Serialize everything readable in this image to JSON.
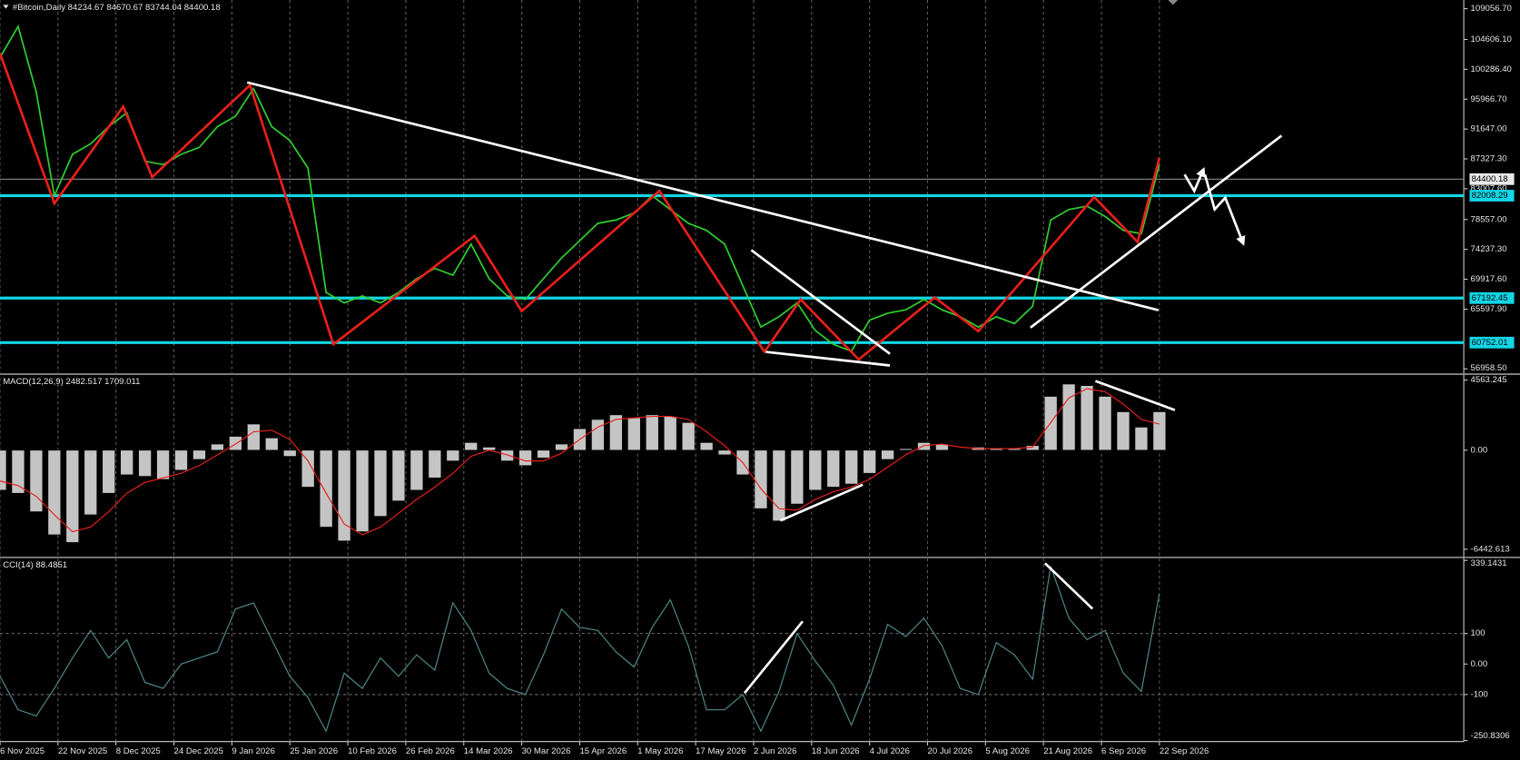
{
  "chart_data": [
    {
      "type": "line",
      "title": "#Bitcoin,Daily  84234.67 84670.67 83744.04 84400.18",
      "x": [
        "6 Nov 2025",
        "11 Nov 2025",
        "16 Nov 2025",
        "21 Nov 2025",
        "26 Nov 2025",
        "1 Dec 2025",
        "6 Dec 2025",
        "11 Dec 2025",
        "16 Dec 2025",
        "21 Dec 2025",
        "26 Dec 2025",
        "31 Dec 2025",
        "5 Jan 2026",
        "10 Jan 2026",
        "15 Jan 2026",
        "20 Jan 2026",
        "25 Jan 2026",
        "30 Jan 2026",
        "4 Feb 2026",
        "9 Feb 2026",
        "14 Feb 2026",
        "19 Feb 2026",
        "24 Feb 2026",
        "1 Mar 2026",
        "6 Mar 2026",
        "11 Mar 2026",
        "16 Mar 2026",
        "21 Mar 2026",
        "26 Mar 2026",
        "31 Mar 2026",
        "5 Apr 2026",
        "10 Apr 2026",
        "15 Apr 2026",
        "20 Apr 2026",
        "25 Apr 2026",
        "30 Apr 2026",
        "5 May 2026",
        "10 May 2026",
        "15 May 2026",
        "20 May 2026",
        "25 May 2026",
        "30 May 2026",
        "4 Jun 2026",
        "9 Jun 2026",
        "14 Jun 2026",
        "19 Jun 2026",
        "24 Jun 2026",
        "29 Jun 2026",
        "4 Jul 2026",
        "9 Jul 2026",
        "14 Jul 2026",
        "19 Jul 2026",
        "24 Jul 2026",
        "29 Jul 2026",
        "3 Aug 2026",
        "8 Aug 2026",
        "13 Aug 2026",
        "18 Aug 2026",
        "23 Aug 2026",
        "28 Aug 2026",
        "2 Sep 2026",
        "7 Sep 2026",
        "12 Sep 2026",
        "17 Sep 2026",
        "22 Sep 2026"
      ],
      "xlim": [
        "6 Nov 2025",
        "15 Dec 2026"
      ],
      "series": [
        {
          "color": "#2fcf2f",
          "values": [
            102000,
            106500,
            97000,
            82000,
            88000,
            89500,
            92000,
            94000,
            87000,
            86500,
            88000,
            89000,
            92000,
            93500,
            97500,
            92000,
            90000,
            86000,
            68000,
            66500,
            67500,
            66500,
            68000,
            70000,
            71500,
            70500,
            75000,
            70000,
            67500,
            67000,
            70000,
            73000,
            75500,
            78000,
            78500,
            79500,
            82000,
            80000,
            78000,
            77000,
            75000,
            69000,
            63000,
            64500,
            66500,
            62500,
            60500,
            59500,
            64000,
            65000,
            65500,
            67000,
            65500,
            64500,
            63000,
            64500,
            63500,
            66000,
            78500,
            80000,
            80500,
            79000,
            77000,
            76500,
            86500
          ]
        }
      ],
      "zigzag": {
        "color": "#e8201a",
        "x": [
          "6 Nov 2025",
          "21 Nov 2025",
          "10 Dec 2025",
          "18 Dec 2025",
          "14 Jan 2026",
          "6 Feb 2026",
          "17 Mar 2026",
          "30 Mar 2026",
          "7 May 2026",
          "5 Jun 2026",
          "15 Jun 2026",
          "1 Jul 2026",
          "22 Jul 2026",
          "3 Aug 2026",
          "4 Sep 2026",
          "16 Sep 2026",
          "22 Sep 2026"
        ],
        "values": [
          102600,
          80900,
          94900,
          84700,
          98000,
          60500,
          76200,
          65300,
          82700,
          59400,
          67000,
          58300,
          67300,
          62400,
          81800,
          75300,
          87500
        ]
      },
      "ylim": [
        56180,
        110320
      ],
      "yticks": [
        {
          "value": 109056.7,
          "label": "109056.70"
        },
        {
          "value": 104606.1,
          "label": "104606.10"
        },
        {
          "value": 100286.4,
          "label": "100286.40"
        },
        {
          "value": 95966.7,
          "label": "95966.70"
        },
        {
          "value": 91647,
          "label": "91647.00"
        },
        {
          "value": 87327.3,
          "label": "87327.30"
        },
        {
          "value": 83007.6,
          "label": "83007.60"
        },
        {
          "value": 78557,
          "label": "78557.00"
        },
        {
          "value": 74237.3,
          "label": "74237.30"
        },
        {
          "value": 69917.6,
          "label": "69917.60"
        },
        {
          "value": 65597.9,
          "label": "65597.90"
        },
        {
          "value": 56958.5,
          "label": "56958.50"
        }
      ],
      "levels": [
        82008.29,
        67192.45,
        60752.01
      ],
      "level_color": "#12d6e6",
      "last_price": 84400.18
    },
    {
      "type": "bar",
      "title": "MACD(12,26,9) 2482.517 1709.011",
      "x": [
        "6 Nov 2025",
        "11 Nov 2025",
        "16 Nov 2025",
        "21 Nov 2025",
        "26 Nov 2025",
        "1 Dec 2025",
        "6 Dec 2025",
        "11 Dec 2025",
        "16 Dec 2025",
        "21 Dec 2025",
        "26 Dec 2025",
        "31 Dec 2025",
        "5 Jan 2026",
        "10 Jan 2026",
        "15 Jan 2026",
        "20 Jan 2026",
        "25 Jan 2026",
        "30 Jan 2026",
        "4 Feb 2026",
        "9 Feb 2026",
        "14 Feb 2026",
        "19 Feb 2026",
        "24 Feb 2026",
        "1 Mar 2026",
        "6 Mar 2026",
        "11 Mar 2026",
        "16 Mar 2026",
        "21 Mar 2026",
        "26 Mar 2026",
        "31 Mar 2026",
        "5 Apr 2026",
        "10 Apr 2026",
        "15 Apr 2026",
        "20 Apr 2026",
        "25 Apr 2026",
        "30 Apr 2026",
        "5 May 2026",
        "10 May 2026",
        "15 May 2026",
        "20 May 2026",
        "25 May 2026",
        "30 May 2026",
        "4 Jun 2026",
        "9 Jun 2026",
        "14 Jun 2026",
        "19 Jun 2026",
        "24 Jun 2026",
        "29 Jun 2026",
        "4 Jul 2026",
        "9 Jul 2026",
        "14 Jul 2026",
        "19 Jul 2026",
        "24 Jul 2026",
        "29 Jul 2026",
        "3 Aug 2026",
        "8 Aug 2026",
        "13 Aug 2026",
        "18 Aug 2026",
        "23 Aug 2026",
        "28 Aug 2026",
        "2 Sep 2026",
        "7 Sep 2026",
        "12 Sep 2026",
        "17 Sep 2026",
        "22 Sep 2026"
      ],
      "xlim": [
        "6 Nov 2025",
        "15 Dec 2026"
      ],
      "series": [
        {
          "type": "bar",
          "color": "#c4c4c4",
          "values": [
            -2600,
            -2800,
            -4000,
            -5500,
            -6000,
            -4200,
            -2800,
            -1600,
            -1700,
            -1900,
            -1300,
            -600,
            400,
            900,
            1700,
            800,
            -400,
            -2400,
            -5000,
            -5900,
            -5300,
            -4300,
            -3300,
            -2600,
            -1800,
            -700,
            500,
            200,
            -700,
            -1000,
            -500,
            400,
            1400,
            2000,
            2300,
            2100,
            2300,
            2200,
            1800,
            500,
            -300,
            -1600,
            -3800,
            -4600,
            -3500,
            -2600,
            -2400,
            -2200,
            -1500,
            -600,
            100,
            500,
            400,
            0,
            200,
            100,
            100,
            300,
            3500,
            4300,
            4200,
            3500,
            2500,
            1500,
            2500
          ]
        },
        {
          "type": "line",
          "color": "#e8201a",
          "values": [
            -2000,
            -2300,
            -3000,
            -4200,
            -5300,
            -5000,
            -4000,
            -2800,
            -2100,
            -1800,
            -1500,
            -1000,
            -300,
            400,
            1200,
            1300,
            700,
            -700,
            -2800,
            -4800,
            -5500,
            -5000,
            -4100,
            -3200,
            -2400,
            -1500,
            -400,
            0,
            -300,
            -700,
            -700,
            -200,
            700,
            1500,
            2000,
            2100,
            2200,
            2200,
            2000,
            1200,
            300,
            -800,
            -2500,
            -3800,
            -3900,
            -3200,
            -2700,
            -2400,
            -1900,
            -1100,
            -300,
            300,
            400,
            200,
            100,
            100,
            100,
            200,
            1800,
            3400,
            4000,
            3800,
            3000,
            2000,
            1700
          ]
        }
      ],
      "ylim": [
        -6970,
        4943
      ],
      "yticks": [
        4563.245,
        {
          "value": 0,
          "label": "0.00"
        },
        -6442.613
      ]
    },
    {
      "type": "line",
      "title": "CCI(14) 88.4851",
      "x": [
        "6 Nov 2025",
        "11 Nov 2025",
        "16 Nov 2025",
        "21 Nov 2025",
        "26 Nov 2025",
        "1 Dec 2025",
        "6 Dec 2025",
        "11 Dec 2025",
        "16 Dec 2025",
        "21 Dec 2025",
        "26 Dec 2025",
        "31 Dec 2025",
        "5 Jan 2026",
        "10 Jan 2026",
        "15 Jan 2026",
        "20 Jan 2026",
        "25 Jan 2026",
        "30 Jan 2026",
        "4 Feb 2026",
        "9 Feb 2026",
        "14 Feb 2026",
        "19 Feb 2026",
        "24 Feb 2026",
        "1 Mar 2026",
        "6 Mar 2026",
        "11 Mar 2026",
        "16 Mar 2026",
        "21 Mar 2026",
        "26 Mar 2026",
        "31 Mar 2026",
        "5 Apr 2026",
        "10 Apr 2026",
        "15 Apr 2026",
        "20 Apr 2026",
        "25 Apr 2026",
        "30 Apr 2026",
        "5 May 2026",
        "10 May 2026",
        "15 May 2026",
        "20 May 2026",
        "25 May 2026",
        "30 May 2026",
        "4 Jun 2026",
        "9 Jun 2026",
        "14 Jun 2026",
        "19 Jun 2026",
        "24 Jun 2026",
        "29 Jun 2026",
        "4 Jul 2026",
        "9 Jul 2026",
        "14 Jul 2026",
        "19 Jul 2026",
        "24 Jul 2026",
        "29 Jul 2026",
        "3 Aug 2026",
        "8 Aug 2026",
        "13 Aug 2026",
        "18 Aug 2026",
        "23 Aug 2026",
        "28 Aug 2026",
        "2 Sep 2026",
        "7 Sep 2026",
        "12 Sep 2026",
        "17 Sep 2026",
        "22 Sep 2026"
      ],
      "xlim": [
        "6 Nov 2025",
        "15 Dec 2026"
      ],
      "series": [
        {
          "color": "#4f8a8b",
          "values": [
            -40,
            -150,
            -170,
            -80,
            20,
            110,
            20,
            80,
            -60,
            -80,
            0,
            20,
            40,
            180,
            200,
            80,
            -40,
            -110,
            -220,
            -30,
            -80,
            20,
            -40,
            30,
            -20,
            200,
            110,
            -30,
            -80,
            -100,
            30,
            180,
            120,
            110,
            40,
            -10,
            120,
            210,
            60,
            -150,
            -150,
            -100,
            -220,
            -90,
            100,
            10,
            -70,
            -200,
            -50,
            130,
            90,
            150,
            60,
            -80,
            -100,
            70,
            30,
            -50,
            320,
            150,
            80,
            110,
            -30,
            -90,
            230
          ]
        }
      ],
      "ylim": [
        -254,
        349
      ],
      "yticks": [
        339.1431,
        100,
        {
          "value": 0,
          "label": "0.00"
        },
        -100,
        -250.8306
      ],
      "levels": [
        100,
        -100
      ],
      "level_color": "#6e6e6e",
      "xticks": [
        "6 Nov 2025",
        "22 Nov 2025",
        "8 Dec 2025",
        "24 Dec 2025",
        "9 Jan 2026",
        "25 Jan 2026",
        "10 Feb 2026",
        "26 Feb 2026",
        "14 Mar 2026",
        "30 Mar 2026",
        "15 Apr 2026",
        "1 May 2026",
        "17 May 2026",
        "2 Jun 2026",
        "18 Jun 2026",
        "4 Jul 2026",
        "20 Jul 2026",
        "5 Aug 2026",
        "21 Aug 2026",
        "6 Sep 2026",
        "22 Sep 2026"
      ],
      "grid": true
    }
  ]
}
